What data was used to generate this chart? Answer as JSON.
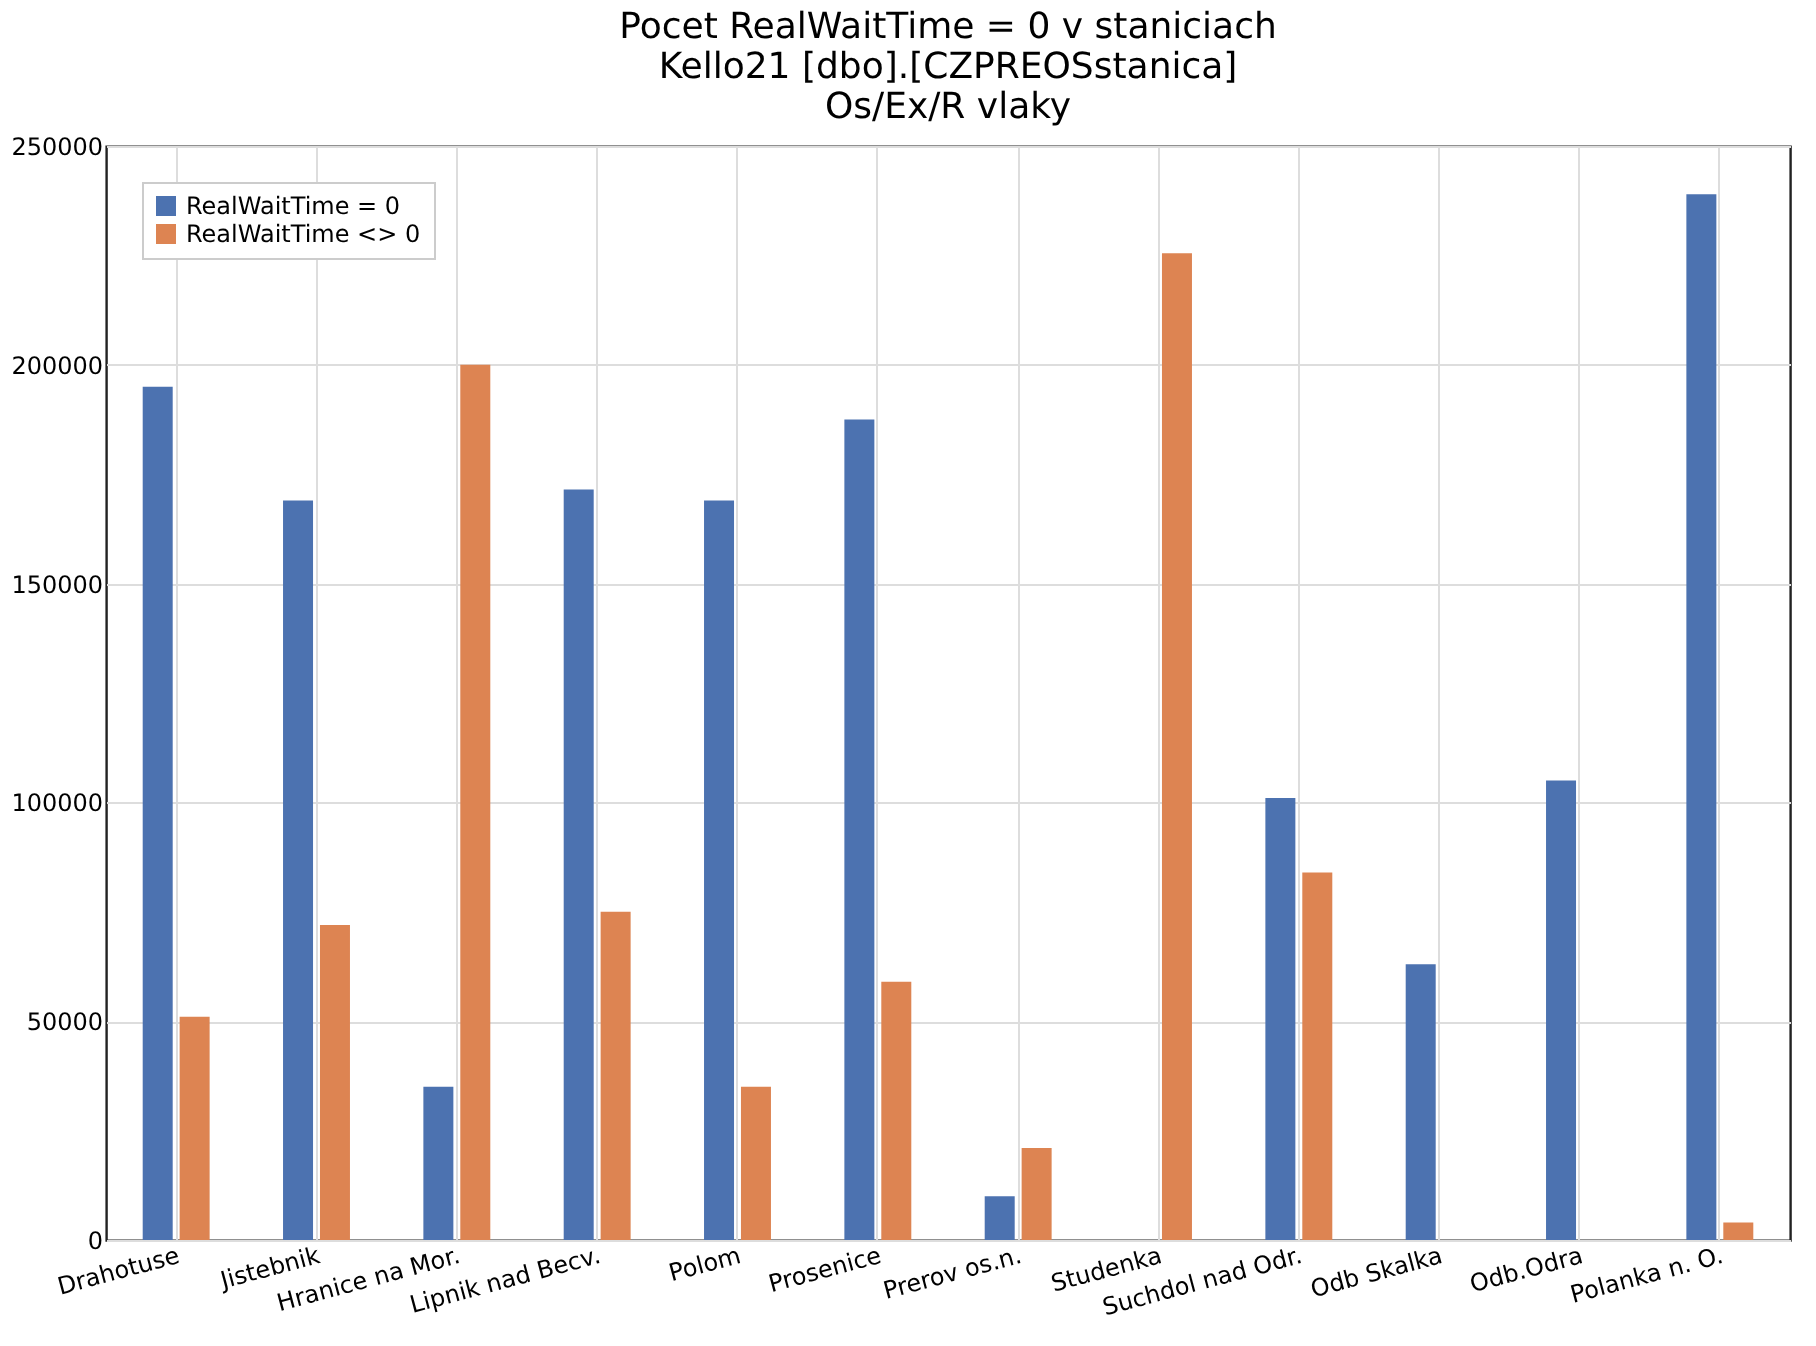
{
  "chart_data": {
    "type": "bar",
    "title": [
      "Pocet RealWaitTime = 0 v staniciach",
      "Kello21 [dbo].[CZPREOSstanica]",
      "Os/Ex/R vlaky"
    ],
    "categories": [
      "Drahotuse",
      "Jistebnik",
      "Hranice na Mor.",
      "Lipnik nad Becv.",
      "Polom",
      "Prosenice",
      "Prerov os.n.",
      "Studenka",
      "Suchdol nad Odr.",
      "Odb Skalka",
      "Odb.Odra",
      "Polanka n. O."
    ],
    "series": [
      {
        "name": "RealWaitTime = 0",
        "color": "#4c72b0",
        "values": [
          195000,
          169000,
          35000,
          171500,
          169000,
          187500,
          10000,
          0,
          101000,
          63000,
          105000,
          239000
        ]
      },
      {
        "name": "RealWaitTime <> 0",
        "color": "#dd8452",
        "values": [
          51000,
          72000,
          200000,
          75000,
          35000,
          59000,
          21000,
          225500,
          84000,
          0,
          0,
          4000
        ]
      }
    ],
    "ylim": [
      0,
      250000
    ],
    "yticks": [
      0,
      50000,
      100000,
      150000,
      200000,
      250000
    ],
    "grid": true,
    "legend": "top left"
  }
}
